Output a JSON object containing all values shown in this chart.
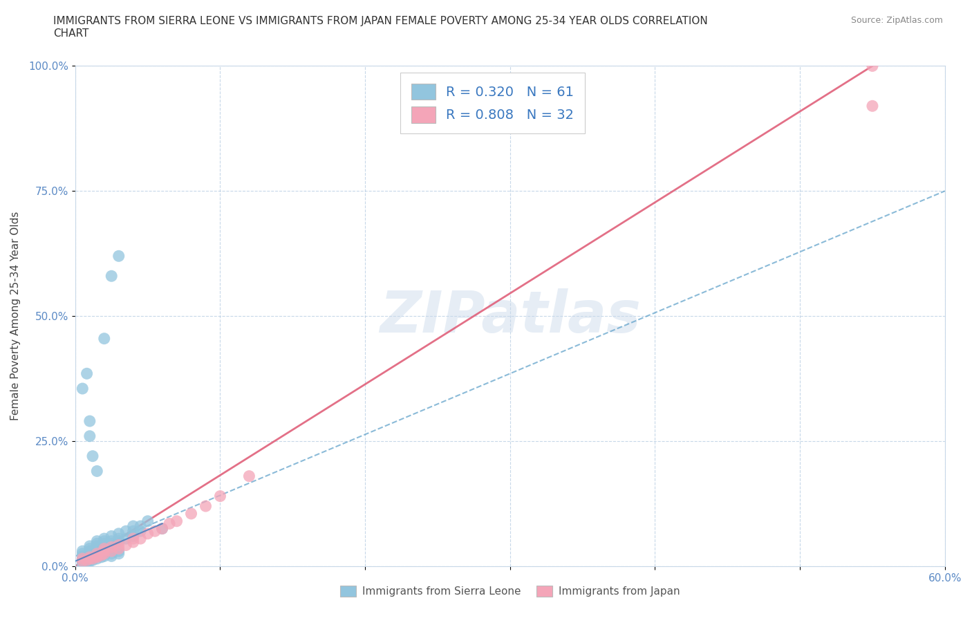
{
  "title": "IMMIGRANTS FROM SIERRA LEONE VS IMMIGRANTS FROM JAPAN FEMALE POVERTY AMONG 25-34 YEAR OLDS CORRELATION\nCHART",
  "source": "Source: ZipAtlas.com",
  "ylabel": "Female Poverty Among 25-34 Year Olds",
  "xlim": [
    0,
    0.6
  ],
  "ylim": [
    0,
    1.0
  ],
  "xtick_positions": [
    0.0,
    0.1,
    0.2,
    0.3,
    0.4,
    0.5,
    0.6
  ],
  "xtick_labels": [
    "0.0%",
    "",
    "",
    "",
    "",
    "",
    "60.0%"
  ],
  "ytick_positions": [
    0.0,
    0.25,
    0.5,
    0.75,
    1.0
  ],
  "ytick_labels": [
    "0.0%",
    "25.0%",
    "50.0%",
    "75.0%",
    "100.0%"
  ],
  "blue_color": "#92c5de",
  "pink_color": "#f4a5b8",
  "trend_blue_color": "#5a9ec8",
  "trend_pink_color": "#e0607a",
  "R_blue": 0.32,
  "N_blue": 61,
  "R_pink": 0.808,
  "N_pink": 32,
  "legend_label_blue": "Immigrants from Sierra Leone",
  "legend_label_pink": "Immigrants from Japan",
  "watermark": "ZIPatlas",
  "blue_scatter_x": [
    0.005,
    0.005,
    0.005,
    0.008,
    0.01,
    0.01,
    0.01,
    0.012,
    0.015,
    0.015,
    0.015,
    0.015,
    0.018,
    0.02,
    0.02,
    0.02,
    0.02,
    0.025,
    0.025,
    0.025,
    0.03,
    0.03,
    0.03,
    0.035,
    0.035,
    0.04,
    0.04,
    0.04,
    0.045,
    0.045,
    0.005,
    0.005,
    0.005,
    0.005,
    0.005,
    0.008,
    0.008,
    0.01,
    0.01,
    0.01,
    0.012,
    0.015,
    0.015,
    0.018,
    0.02,
    0.02,
    0.025,
    0.025,
    0.03,
    0.03,
    0.005,
    0.008,
    0.01,
    0.01,
    0.012,
    0.015,
    0.02,
    0.025,
    0.03,
    0.05,
    0.06
  ],
  "blue_scatter_y": [
    0.02,
    0.025,
    0.03,
    0.02,
    0.03,
    0.035,
    0.04,
    0.03,
    0.035,
    0.04,
    0.045,
    0.05,
    0.04,
    0.04,
    0.045,
    0.05,
    0.055,
    0.045,
    0.05,
    0.06,
    0.05,
    0.055,
    0.065,
    0.055,
    0.07,
    0.06,
    0.07,
    0.08,
    0.07,
    0.08,
    0.005,
    0.008,
    0.01,
    0.012,
    0.015,
    0.008,
    0.012,
    0.01,
    0.015,
    0.018,
    0.012,
    0.015,
    0.02,
    0.018,
    0.02,
    0.025,
    0.02,
    0.025,
    0.025,
    0.03,
    0.355,
    0.385,
    0.26,
    0.29,
    0.22,
    0.19,
    0.455,
    0.58,
    0.62,
    0.09,
    0.075
  ],
  "pink_scatter_x": [
    0.005,
    0.005,
    0.008,
    0.01,
    0.01,
    0.012,
    0.015,
    0.015,
    0.015,
    0.018,
    0.02,
    0.02,
    0.02,
    0.025,
    0.025,
    0.03,
    0.03,
    0.035,
    0.04,
    0.04,
    0.045,
    0.05,
    0.055,
    0.06,
    0.065,
    0.07,
    0.08,
    0.09,
    0.1,
    0.12,
    0.55,
    0.55
  ],
  "pink_scatter_y": [
    0.01,
    0.015,
    0.012,
    0.015,
    0.018,
    0.015,
    0.018,
    0.02,
    0.025,
    0.022,
    0.025,
    0.03,
    0.035,
    0.03,
    0.038,
    0.035,
    0.042,
    0.042,
    0.048,
    0.055,
    0.055,
    0.065,
    0.07,
    0.075,
    0.085,
    0.09,
    0.105,
    0.12,
    0.14,
    0.18,
    1.0,
    0.92
  ],
  "blue_trend_x0": 0.0,
  "blue_trend_y0": 0.02,
  "blue_trend_x1": 0.6,
  "blue_trend_y1": 0.75,
  "pink_trend_x0": 0.0,
  "pink_trend_y0": 0.0,
  "pink_trend_x1": 0.55,
  "pink_trend_y1": 1.0
}
